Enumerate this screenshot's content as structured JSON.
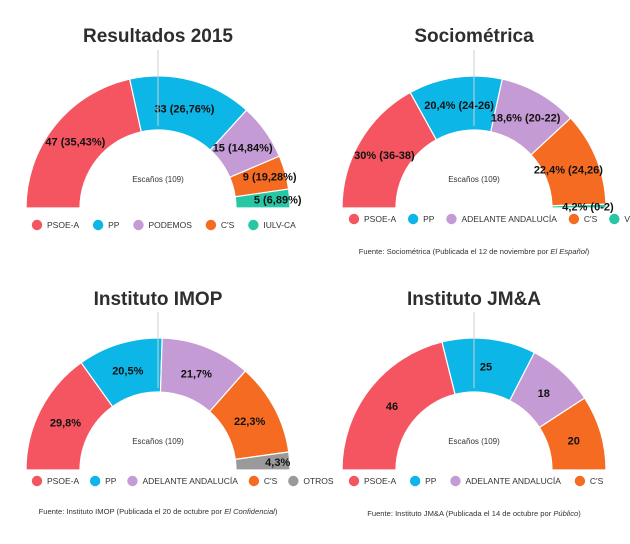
{
  "colors": {
    "psoe": "#f45560",
    "pp": "#0cb6e6",
    "podemos": "#c49bd4",
    "cs": "#f56b22",
    "iu": "#27c6a4",
    "vox": "#27c6a4",
    "otros": "#9a9a9a"
  },
  "chart_data": [
    {
      "type": "pie",
      "subtype": "semicircle parliament",
      "title": "Resultados 2015",
      "center_label": "Escaños (109)",
      "slices": [
        {
          "name": "PSOE-A",
          "value": 47,
          "label": "47 (35,43%)",
          "color": "#f45560"
        },
        {
          "name": "PP",
          "value": 33,
          "label": "33 (26,76%)",
          "color": "#0cb6e6"
        },
        {
          "name": "PODEMOS",
          "value": 15,
          "label": "15 (14,84%)",
          "color": "#c49bd4"
        },
        {
          "name": "C'S",
          "value": 9,
          "label": "9 (19,28%)",
          "color": "#f56b22"
        },
        {
          "name": "IULV-CA",
          "value": 5,
          "label": "5 (6,89%)",
          "color": "#27c6a4"
        }
      ],
      "legend": [
        {
          "label": "PSOE-A",
          "color": "#f45560"
        },
        {
          "label": "PP",
          "color": "#0cb6e6"
        },
        {
          "label": "PODEMOS",
          "color": "#c49bd4"
        },
        {
          "label": "C'S",
          "color": "#f56b22"
        },
        {
          "label": "IULV-CA",
          "color": "#27c6a4"
        }
      ],
      "source": null
    },
    {
      "type": "pie",
      "subtype": "semicircle parliament",
      "title": "Sociométrica",
      "center_label": "Escaños (109)",
      "slices": [
        {
          "name": "PSOE-A",
          "value": 37,
          "label": "30% (36-38)",
          "color": "#f45560"
        },
        {
          "name": "PP",
          "value": 25,
          "label": "20,4% (24-26)",
          "color": "#0cb6e6"
        },
        {
          "name": "ADELANTE ANDALUCÍA",
          "value": 21,
          "label": "18,6% (20-22)",
          "color": "#c49bd4"
        },
        {
          "name": "C'S",
          "value": 25,
          "label": "22,4% (24,26)",
          "color": "#f56b22"
        },
        {
          "name": "VOX",
          "value": 1,
          "label": "4,2% (0-2)",
          "color": "#27c6a4"
        }
      ],
      "legend": [
        {
          "label": "PSOE-A",
          "color": "#f45560"
        },
        {
          "label": "PP",
          "color": "#0cb6e6"
        },
        {
          "label": "ADELANTE ANDALUCÍA",
          "color": "#c49bd4"
        },
        {
          "label": "C'S",
          "color": "#f56b22"
        },
        {
          "label": "VOX",
          "color": "#27c6a4"
        }
      ],
      "source": {
        "pre": "Fuente: Sociométrica (Publicada el 12 de noviembre por ",
        "italic": "El Español",
        "post": ")"
      }
    },
    {
      "type": "pie",
      "subtype": "semicircle parliament",
      "title": "Instituto IMOP",
      "center_label": "Escaños (109)",
      "slices": [
        {
          "name": "PSOE-A",
          "value": 29.8,
          "label": "29,8%",
          "color": "#f45560"
        },
        {
          "name": "PP",
          "value": 20.5,
          "label": "20,5%",
          "color": "#0cb6e6"
        },
        {
          "name": "ADELANTE ANDALUCÍA",
          "value": 21.7,
          "label": "21,7%",
          "color": "#c49bd4"
        },
        {
          "name": "C'S",
          "value": 22.3,
          "label": "22,3%",
          "color": "#f56b22"
        },
        {
          "name": "OTROS",
          "value": 4.3,
          "label": "4,3%",
          "color": "#9a9a9a"
        }
      ],
      "legend": [
        {
          "label": "PSOE-A",
          "color": "#f45560"
        },
        {
          "label": "PP",
          "color": "#0cb6e6"
        },
        {
          "label": "ADELANTE ANDALUCÍA",
          "color": "#c49bd4"
        },
        {
          "label": "C'S",
          "color": "#f56b22"
        },
        {
          "label": "OTROS",
          "color": "#9a9a9a"
        }
      ],
      "source": {
        "pre": "Fuente: Instituto IMOP (Publicada el 20 de octubre por ",
        "italic": "El Confidencial",
        "post": ")"
      }
    },
    {
      "type": "pie",
      "subtype": "semicircle parliament",
      "title": "Instituto JM&A",
      "center_label": "Escaños (109)",
      "slices": [
        {
          "name": "PSOE-A",
          "value": 46,
          "label": "46",
          "color": "#f45560"
        },
        {
          "name": "PP",
          "value": 25,
          "label": "25",
          "color": "#0cb6e6"
        },
        {
          "name": "ADELANTE ANDALUCÍA",
          "value": 18,
          "label": "18",
          "color": "#c49bd4"
        },
        {
          "name": "C'S",
          "value": 20,
          "label": "20",
          "color": "#f56b22"
        }
      ],
      "legend": [
        {
          "label": "PSOE-A",
          "color": "#f45560"
        },
        {
          "label": "PP",
          "color": "#0cb6e6"
        },
        {
          "label": "ADELANTE ANDALUCÍA",
          "color": "#c49bd4"
        },
        {
          "label": "C'S",
          "color": "#f56b22"
        }
      ],
      "source": {
        "pre": "Fuente: Instituto JM&A (Publicada el 14 de octubre por ",
        "italic": "Público",
        "post": ")"
      }
    }
  ]
}
